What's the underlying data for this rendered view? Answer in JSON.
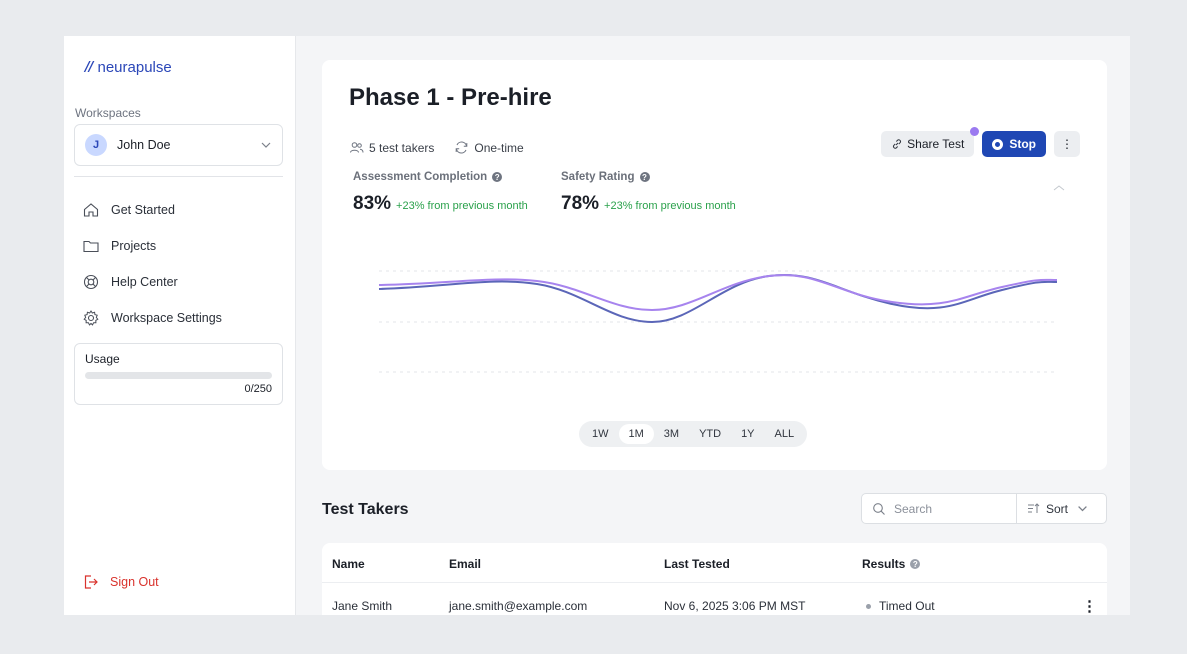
{
  "brand": {
    "mark": "//",
    "name": "neurapulse"
  },
  "sidebar": {
    "workspaces_label": "Workspaces",
    "workspace": {
      "initial": "J",
      "name": "John Doe"
    },
    "nav": [
      {
        "label": "Get Started",
        "icon": "home-icon"
      },
      {
        "label": "Projects",
        "icon": "folder-icon"
      },
      {
        "label": "Help Center",
        "icon": "lifebuoy-icon"
      },
      {
        "label": "Workspace Settings",
        "icon": "gear-icon"
      }
    ],
    "usage": {
      "title": "Usage",
      "count": "0/250",
      "used": 0,
      "limit": 250
    },
    "sign_out": "Sign Out"
  },
  "test": {
    "title": "Phase 1 - Pre-hire",
    "takers": "5 test takers",
    "frequency": "One-time",
    "share_label": "Share Test",
    "stop_label": "Stop",
    "more_label": "⋮"
  },
  "metrics": [
    {
      "label": "Assessment Completion",
      "value": "83%",
      "delta": "+23% from previous month"
    },
    {
      "label": "Safety Rating",
      "value": "78%",
      "delta": "+23% from previous month"
    }
  ],
  "chart_data": {
    "type": "line",
    "series": [
      {
        "name": "Assessment Completion",
        "color": "#5b66b8"
      },
      {
        "name": "Safety Rating",
        "color": "#a784ee"
      }
    ],
    "ranges": [
      "1W",
      "1M",
      "3M",
      "YTD",
      "1Y",
      "ALL"
    ],
    "selected_range": "1M"
  },
  "test_takers": {
    "title": "Test Takers",
    "search_placeholder": "Search",
    "sort_label": "Sort",
    "columns": {
      "name": "Name",
      "email": "Email",
      "last_tested": "Last Tested",
      "results": "Results"
    },
    "rows": [
      {
        "name": "Jane Smith",
        "email": "jane.smith@example.com",
        "last_tested": "Nov 6, 2025 3:06 PM MST",
        "result": "Timed Out"
      }
    ]
  }
}
